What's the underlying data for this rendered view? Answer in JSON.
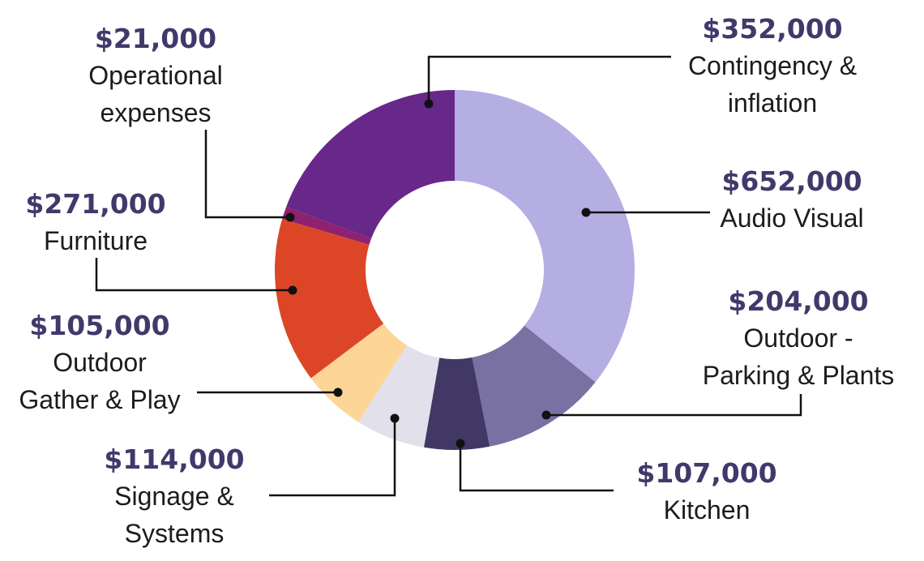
{
  "chart_data": {
    "type": "pie",
    "variant": "donut",
    "start": "top, clockwise",
    "slices": [
      {
        "label": "Audio Visual",
        "value_text": "$652,000",
        "value": 652000,
        "color": "#b5aee3"
      },
      {
        "label": "Outdoor - Parking & Plants",
        "label_lines": [
          "Outdoor -",
          "Parking & Plants"
        ],
        "value_text": "$204,000",
        "value": 204000,
        "color": "#7a71a3"
      },
      {
        "label": "Kitchen",
        "value_text": "$107,000",
        "value": 107000,
        "color": "#423866"
      },
      {
        "label": "Signage & Systems",
        "label_lines": [
          "Signage &",
          "Systems"
        ],
        "value_text": "$114,000",
        "value": 114000,
        "color": "#e2e0ea"
      },
      {
        "label": "Outdoor Gather & Play",
        "label_lines": [
          "Outdoor",
          "Gather & Play"
        ],
        "value_text": "$105,000",
        "value": 105000,
        "color": "#fdd697"
      },
      {
        "label": "Furniture",
        "value_text": "$271,000",
        "value": 271000,
        "color": "#dc4627"
      },
      {
        "label": "Operational expenses",
        "label_lines": [
          "Operational",
          "expenses"
        ],
        "value_text": "$21,000",
        "value": 21000,
        "color": "#8e2170"
      },
      {
        "label": "Contingency & inflation",
        "label_lines": [
          "Contingency &",
          "inflation"
        ],
        "value_text": "$352,000",
        "value": 352000,
        "color": "#67288a"
      }
    ]
  }
}
